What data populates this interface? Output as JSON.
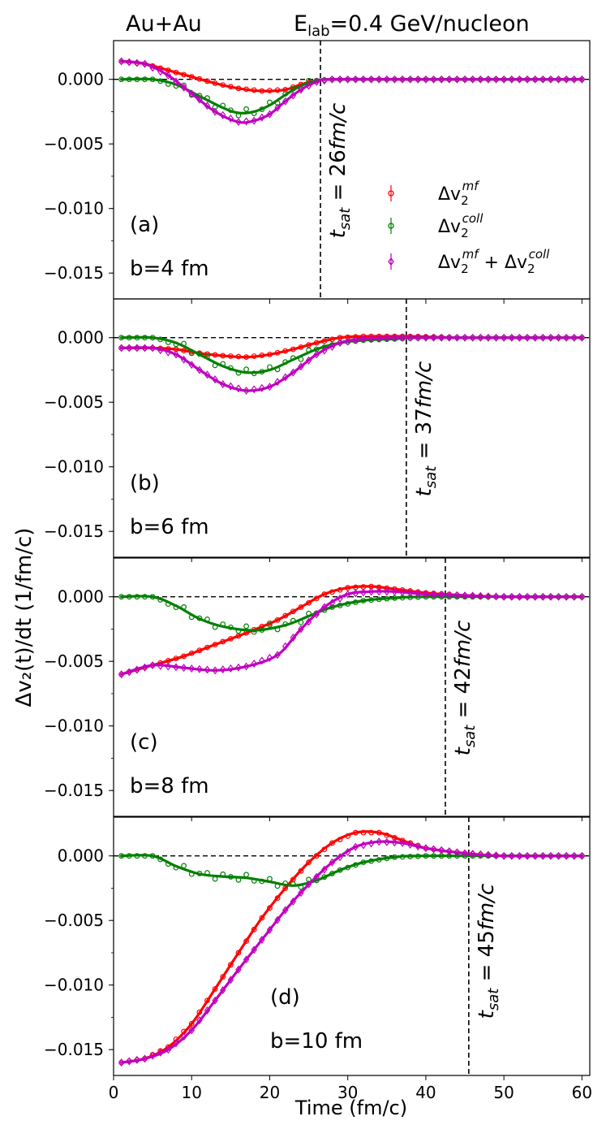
{
  "chart_data": {
    "type": "line",
    "figure_title_left": "Au+Au",
    "energy_label": "E",
    "energy_sub": "lab",
    "energy_value": "=0.4 GeV/nucleon",
    "xlabel": "Time (fm/c)",
    "ylabel": "Δv₂(t)/dt  (1/fm/c)",
    "xlim": [
      0,
      61
    ],
    "ylim": [
      -0.017,
      0.003
    ],
    "xticks": [
      "0",
      "10",
      "20",
      "30",
      "40",
      "50",
      "60"
    ],
    "yticks": [
      "0.000",
      "−0.005",
      "−0.010",
      "−0.015"
    ],
    "legend": [
      {
        "key": "mf",
        "label": "Δv₂^mf",
        "color": "#ff0000",
        "marker": "circle"
      },
      {
        "key": "coll",
        "label": "Δv₂^coll",
        "color": "#008000",
        "marker": "circle"
      },
      {
        "key": "sum",
        "label": "Δv₂^mf + Δv₂^coll",
        "color": "#bf00bf",
        "marker": "diamond"
      }
    ],
    "legend_text": {
      "delta": "Δv",
      "two": "2",
      "mf": "mf",
      "coll": "coll",
      "plus": " + Δv"
    },
    "panels": [
      {
        "id": "a",
        "label": "(a)",
        "impact": "b=4 fm",
        "t_sat": 26.5,
        "t_sat_label": "t_sat = 26fm/c",
        "sat_sub": "sat",
        "sat_text": " = 26",
        "sat_unit": "fm/c",
        "series": {
          "mf": [
            [
              1,
              0.0014
            ],
            [
              4,
              0.0012
            ],
            [
              7,
              0.0007
            ],
            [
              10,
              0.0002
            ],
            [
              13,
              -0.0003
            ],
            [
              16,
              -0.0007
            ],
            [
              19,
              -0.0009
            ],
            [
              22,
              -0.0008
            ],
            [
              24,
              -0.0004
            ],
            [
              26,
              -0.0001
            ],
            [
              28,
              0.0
            ],
            [
              35,
              0.0
            ],
            [
              45,
              0.0
            ],
            [
              60,
              0.0
            ]
          ],
          "coll": [
            [
              1,
              0.0
            ],
            [
              5,
              0.0
            ],
            [
              8,
              -0.0004
            ],
            [
              11,
              -0.0013
            ],
            [
              14,
              -0.0022
            ],
            [
              16,
              -0.0026
            ],
            [
              18,
              -0.0025
            ],
            [
              20,
              -0.002
            ],
            [
              22,
              -0.0012
            ],
            [
              24,
              -0.0005
            ],
            [
              26,
              -0.0001
            ],
            [
              28,
              0.0
            ],
            [
              40,
              0.0
            ],
            [
              60,
              0.0
            ]
          ],
          "sum": [
            [
              1,
              0.0014
            ],
            [
              4,
              0.0012
            ],
            [
              7,
              0.0003
            ],
            [
              10,
              -0.0011
            ],
            [
              13,
              -0.0025
            ],
            [
              16,
              -0.0033
            ],
            [
              18,
              -0.0032
            ],
            [
              20,
              -0.0027
            ],
            [
              22,
              -0.0017
            ],
            [
              24,
              -0.0008
            ],
            [
              26,
              -0.0002
            ],
            [
              28,
              0.0
            ],
            [
              40,
              0.0
            ],
            [
              60,
              0.0
            ]
          ]
        }
      },
      {
        "id": "b",
        "label": "(b)",
        "impact": "b=6 fm",
        "t_sat": 37.5,
        "t_sat_label": "t_sat = 37fm/c",
        "sat_sub": "sat",
        "sat_text": " = 37",
        "sat_unit": "fm/c",
        "series": {
          "mf": [
            [
              1,
              -0.0008
            ],
            [
              5,
              -0.0008
            ],
            [
              8,
              -0.0009
            ],
            [
              11,
              -0.0012
            ],
            [
              14,
              -0.0014
            ],
            [
              17,
              -0.0015
            ],
            [
              20,
              -0.0013
            ],
            [
              23,
              -0.0009
            ],
            [
              26,
              -0.0004
            ],
            [
              29,
              0.0
            ],
            [
              32,
              0.0001
            ],
            [
              35,
              0.0001
            ],
            [
              38,
              0.0001
            ],
            [
              45,
              0.0
            ],
            [
              60,
              0.0
            ]
          ],
          "coll": [
            [
              1,
              0.0
            ],
            [
              5,
              0.0
            ],
            [
              8,
              -0.0004
            ],
            [
              11,
              -0.0013
            ],
            [
              14,
              -0.0022
            ],
            [
              17,
              -0.0027
            ],
            [
              20,
              -0.0025
            ],
            [
              23,
              -0.0017
            ],
            [
              26,
              -0.0009
            ],
            [
              29,
              -0.0004
            ],
            [
              32,
              -0.0002
            ],
            [
              36,
              -0.0001
            ],
            [
              40,
              0.0
            ],
            [
              60,
              0.0
            ]
          ],
          "sum": [
            [
              1,
              -0.0008
            ],
            [
              5,
              -0.0008
            ],
            [
              8,
              -0.0013
            ],
            [
              11,
              -0.0025
            ],
            [
              14,
              -0.0036
            ],
            [
              17,
              -0.0041
            ],
            [
              20,
              -0.0038
            ],
            [
              23,
              -0.0027
            ],
            [
              26,
              -0.0013
            ],
            [
              29,
              -0.0004
            ],
            [
              32,
              -0.0001
            ],
            [
              36,
              0.0
            ],
            [
              40,
              0.0
            ],
            [
              60,
              0.0
            ]
          ]
        }
      },
      {
        "id": "c",
        "label": "(c)",
        "impact": "b=8 fm",
        "t_sat": 42.5,
        "t_sat_label": "t_sat = 42fm/c",
        "sat_sub": "sat",
        "sat_text": " = 42",
        "sat_unit": "fm/c",
        "series": {
          "mf": [
            [
              1,
              -0.006
            ],
            [
              5,
              -0.0053
            ],
            [
              9,
              -0.0046
            ],
            [
              13,
              -0.0037
            ],
            [
              17,
              -0.0028
            ],
            [
              21,
              -0.0018
            ],
            [
              24,
              -0.0008
            ],
            [
              27,
              0.0002
            ],
            [
              30,
              0.0007
            ],
            [
              33,
              0.0008
            ],
            [
              36,
              0.0006
            ],
            [
              40,
              0.0003
            ],
            [
              45,
              0.0001
            ],
            [
              50,
              0.0
            ],
            [
              60,
              0.0
            ]
          ],
          "coll": [
            [
              1,
              0.0
            ],
            [
              5,
              0.0
            ],
            [
              8,
              -0.0007
            ],
            [
              11,
              -0.0017
            ],
            [
              14,
              -0.0023
            ],
            [
              18,
              -0.0026
            ],
            [
              22,
              -0.0022
            ],
            [
              25,
              -0.0015
            ],
            [
              28,
              -0.0008
            ],
            [
              32,
              -0.0003
            ],
            [
              36,
              -0.0001
            ],
            [
              40,
              0.0
            ],
            [
              60,
              0.0
            ]
          ],
          "sum": [
            [
              1,
              -0.006
            ],
            [
              5,
              -0.0053
            ],
            [
              9,
              -0.0055
            ],
            [
              13,
              -0.0057
            ],
            [
              17,
              -0.0054
            ],
            [
              21,
              -0.0045
            ],
            [
              24,
              -0.0025
            ],
            [
              27,
              -0.0008
            ],
            [
              30,
              0.0002
            ],
            [
              33,
              0.0004
            ],
            [
              36,
              0.0004
            ],
            [
              40,
              0.0002
            ],
            [
              45,
              0.0001
            ],
            [
              50,
              0.0
            ],
            [
              60,
              0.0
            ]
          ]
        }
      },
      {
        "id": "d",
        "label": "(d)",
        "impact": "b=10 fm",
        "t_sat": 45.5,
        "t_sat_label": "t_sat = 45fm/c",
        "sat_sub": "sat",
        "sat_text": " = 45",
        "sat_unit": "fm/c",
        "series": {
          "mf": [
            [
              1,
              -0.016
            ],
            [
              4,
              -0.0157
            ],
            [
              7,
              -0.0148
            ],
            [
              10,
              -0.013
            ],
            [
              13,
              -0.0103
            ],
            [
              16,
              -0.0075
            ],
            [
              19,
              -0.0048
            ],
            [
              22,
              -0.0025
            ],
            [
              25,
              -0.0005
            ],
            [
              28,
              0.001
            ],
            [
              31,
              0.0018
            ],
            [
              34,
              0.0018
            ],
            [
              37,
              0.0012
            ],
            [
              40,
              0.0006
            ],
            [
              45,
              0.0002
            ],
            [
              50,
              0.0
            ],
            [
              60,
              0.0
            ]
          ],
          "coll": [
            [
              1,
              0.0
            ],
            [
              5,
              0.0
            ],
            [
              8,
              -0.0008
            ],
            [
              11,
              -0.0014
            ],
            [
              14,
              -0.0016
            ],
            [
              17,
              -0.0017
            ],
            [
              20,
              -0.002
            ],
            [
              23,
              -0.0023
            ],
            [
              26,
              -0.0019
            ],
            [
              29,
              -0.0011
            ],
            [
              32,
              -0.0005
            ],
            [
              36,
              -0.0001
            ],
            [
              40,
              0.0
            ],
            [
              60,
              0.0
            ]
          ],
          "sum": [
            [
              1,
              -0.016
            ],
            [
              4,
              -0.0157
            ],
            [
              7,
              -0.015
            ],
            [
              10,
              -0.0135
            ],
            [
              13,
              -0.0112
            ],
            [
              16,
              -0.0088
            ],
            [
              19,
              -0.0065
            ],
            [
              22,
              -0.0042
            ],
            [
              25,
              -0.0022
            ],
            [
              28,
              -0.0005
            ],
            [
              31,
              0.0007
            ],
            [
              34,
              0.0011
            ],
            [
              37,
              0.001
            ],
            [
              40,
              0.0006
            ],
            [
              45,
              0.0002
            ],
            [
              50,
              0.0
            ],
            [
              60,
              0.0
            ]
          ]
        }
      }
    ]
  }
}
